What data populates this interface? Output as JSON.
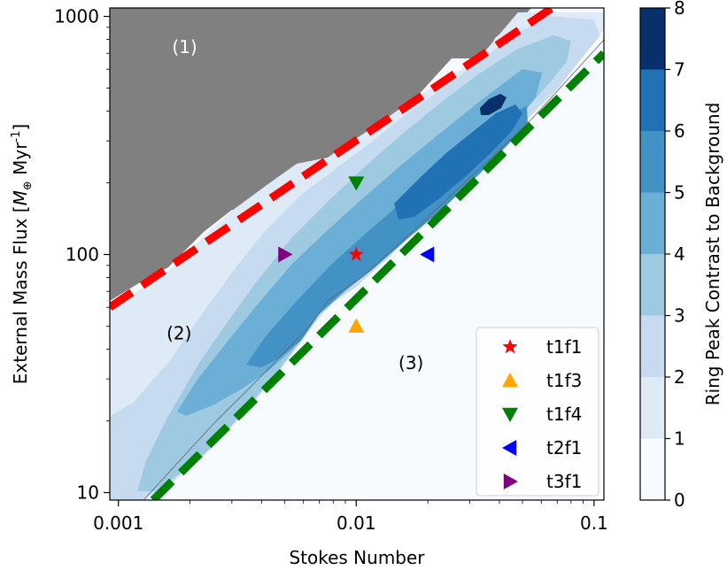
{
  "chart_data": {
    "type": "heatmap",
    "xlabel": "Stokes Number",
    "xscale": "log",
    "xlim": [
      0.00092,
      0.11
    ],
    "xticks": [
      {
        "value": 0.001,
        "label": "0.001"
      },
      {
        "value": 0.01,
        "label": "0.01"
      },
      {
        "value": 0.1,
        "label": "0.1"
      }
    ],
    "ylabel_main": "External Mass Flux [",
    "ylabel_m": "M",
    "ylabel_sub": "⊕",
    "ylabel_unit": " Myr",
    "ylabel_sup": "-1",
    "ylabel_close": "]",
    "yscale": "log",
    "ylim": [
      9.3,
      1085
    ],
    "yticks": [
      {
        "value": 10,
        "label": "10"
      },
      {
        "value": 100,
        "label": "100"
      },
      {
        "value": 1000,
        "label": "1000"
      }
    ],
    "colorbar": {
      "label": "Ring Peak Contrast to Background",
      "min": 0,
      "max": 8,
      "ticks": [
        "0",
        "1",
        "2",
        "3",
        "4",
        "5",
        "6",
        "7",
        "8"
      ],
      "levels": [
        {
          "min": 0,
          "max": 1,
          "color": "#f7fbff"
        },
        {
          "min": 1,
          "max": 2,
          "color": "#deebf7"
        },
        {
          "min": 2,
          "max": 3,
          "color": "#c6dbef"
        },
        {
          "min": 3,
          "max": 4,
          "color": "#9ecae1"
        },
        {
          "min": 4,
          "max": 5,
          "color": "#6baed6"
        },
        {
          "min": 5,
          "max": 6,
          "color": "#4292c6"
        },
        {
          "min": 6,
          "max": 7,
          "color": "#2171b5"
        },
        {
          "min": 7,
          "max": 8,
          "color": "#08306b"
        }
      ]
    },
    "regions": [
      {
        "label": "(1)",
        "stokes": 0.0019,
        "flux": 700,
        "color": "#ffffff"
      },
      {
        "label": "(2)",
        "stokes": 0.0018,
        "flux": 44,
        "color": "#000000"
      },
      {
        "label": "(3)",
        "stokes": 0.017,
        "flux": 33,
        "color": "#000000"
      }
    ],
    "boundary_lines": [
      {
        "color": "#ff0000",
        "points": [
          [
            0.00092,
            60
          ],
          [
            0.0665,
            1085
          ]
        ]
      },
      {
        "color": "#008000",
        "points": [
          [
            0.0014,
            9.3
          ],
          [
            0.11,
            700
          ]
        ]
      }
    ],
    "masked_color": "#808080",
    "series": [
      {
        "name": "t1f1",
        "marker": "star",
        "color": "#ff0000",
        "stokes": 0.01,
        "flux": 100
      },
      {
        "name": "t1f3",
        "marker": "triangle-up",
        "color": "#ffa500",
        "stokes": 0.01,
        "flux": 50
      },
      {
        "name": "t1f4",
        "marker": "triangle-down",
        "color": "#008000",
        "stokes": 0.01,
        "flux": 200
      },
      {
        "name": "t2f1",
        "marker": "triangle-left",
        "color": "#0000ff",
        "stokes": 0.02,
        "flux": 100
      },
      {
        "name": "t3f1",
        "marker": "triangle-right",
        "color": "#800080",
        "stokes": 0.005,
        "flux": 100
      }
    ],
    "legend_position": "lower-right"
  }
}
